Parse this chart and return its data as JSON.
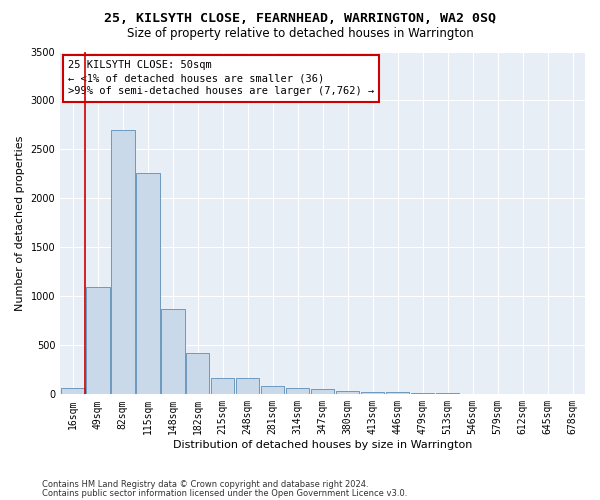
{
  "title_line1": "25, KILSYTH CLOSE, FEARNHEAD, WARRINGTON, WA2 0SQ",
  "title_line2": "Size of property relative to detached houses in Warrington",
  "xlabel": "Distribution of detached houses by size in Warrington",
  "ylabel": "Number of detached properties",
  "bar_values": [
    60,
    1100,
    2700,
    2260,
    870,
    420,
    170,
    165,
    90,
    60,
    55,
    35,
    25,
    20,
    15,
    10,
    5,
    3,
    2,
    0,
    0
  ],
  "bin_labels": [
    "16sqm",
    "49sqm",
    "82sqm",
    "115sqm",
    "148sqm",
    "182sqm",
    "215sqm",
    "248sqm",
    "281sqm",
    "314sqm",
    "347sqm",
    "380sqm",
    "413sqm",
    "446sqm",
    "479sqm",
    "513sqm",
    "546sqm",
    "579sqm",
    "612sqm",
    "645sqm",
    "678sqm"
  ],
  "bar_color": "#c9d9ea",
  "bar_edge_color": "#5b8db8",
  "background_color": "#e8eef5",
  "vline_color": "#cc0000",
  "annotation_box_text": "25 KILSYTH CLOSE: 50sqm\n← <1% of detached houses are smaller (36)\n>99% of semi-detached houses are larger (7,762) →",
  "ylim": [
    0,
    3500
  ],
  "yticks": [
    0,
    500,
    1000,
    1500,
    2000,
    2500,
    3000,
    3500
  ],
  "footer_line1": "Contains HM Land Registry data © Crown copyright and database right 2024.",
  "footer_line2": "Contains public sector information licensed under the Open Government Licence v3.0.",
  "title_fontsize": 9.5,
  "subtitle_fontsize": 8.5,
  "axis_label_fontsize": 8,
  "tick_fontsize": 7,
  "annotation_fontsize": 7.5,
  "footer_fontsize": 6
}
